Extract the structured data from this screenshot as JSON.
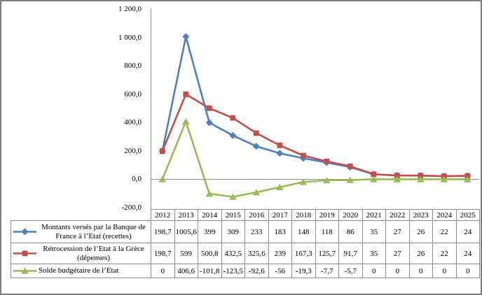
{
  "chart_data": {
    "type": "line",
    "title": "",
    "xlabel": "",
    "ylabel": "",
    "categories": [
      "2012",
      "2013",
      "2014",
      "2015",
      "2016",
      "2017",
      "2018",
      "2019",
      "2020",
      "2021",
      "2022",
      "2023",
      "2024",
      "2025"
    ],
    "series": [
      {
        "name": "Montants versés par la Banque de France à l’Etat (recettes)",
        "marker": "diamond",
        "color": "#4F81BD",
        "values": [
          198.7,
          1005.6,
          399,
          309,
          233,
          183,
          148,
          118,
          86,
          35,
          27,
          26,
          22,
          24
        ]
      },
      {
        "name": "Rétrocession de l’Etat à la Grèce (dépenses)",
        "marker": "square",
        "color": "#C0504D",
        "values": [
          198.7,
          599,
          500.8,
          432.5,
          325.6,
          239,
          167.3,
          125.7,
          91.7,
          35,
          27,
          26,
          22,
          24
        ]
      },
      {
        "name": "Solde budgétaire de l’Etat",
        "marker": "triangle",
        "color": "#9BBB59",
        "values": [
          0,
          406.6,
          -101.8,
          -123.5,
          -92.6,
          -56,
          -19.3,
          -7.7,
          -5.7,
          0,
          0,
          0,
          0,
          0
        ]
      }
    ],
    "ylim": [
      -200,
      1200
    ],
    "ytick_step": 200,
    "ytick_labels_top_to_bottom": [
      "1 200,0",
      "1 000,0",
      "800,0",
      "600,0",
      "400,0",
      "200,0",
      "0,0",
      "-200,0"
    ],
    "grid": false,
    "zero_line": true,
    "axis_color": "#8c8c8c",
    "legend_position": "data-table-left",
    "number_format": "french-comma-decimal"
  },
  "data_table": {
    "border_color": "#8c8c8c",
    "display_values": [
      [
        "198,7",
        "1005,6",
        "399",
        "309",
        "233",
        "183",
        "148",
        "118",
        "86",
        "35",
        "27",
        "26",
        "22",
        "24"
      ],
      [
        "198,7",
        "599",
        "500,8",
        "432,5",
        "325,6",
        "239",
        "167,3",
        "125,7",
        "91,7",
        "35",
        "27",
        "26",
        "22",
        "24"
      ],
      [
        "0",
        "406,6",
        "-101,8",
        "-123,5",
        "-92,6",
        "-56",
        "-19,3",
        "-7,7",
        "-5,7",
        "0",
        "0",
        "0",
        "0",
        "0"
      ]
    ]
  }
}
